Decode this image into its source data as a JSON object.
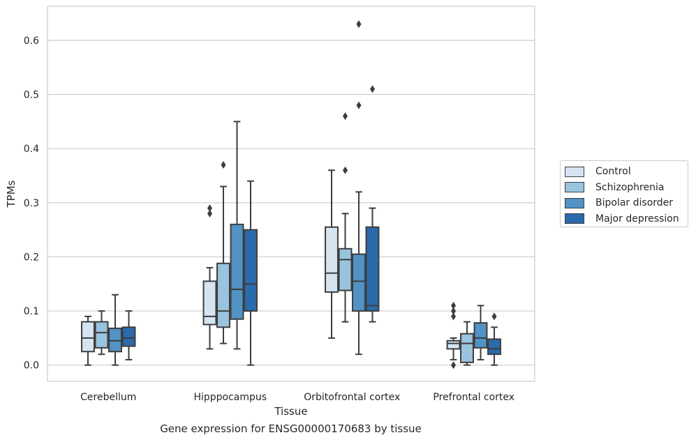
{
  "caption": "Gene expression for ENSG00000170683 by tissue",
  "chart_data": {
    "type": "box",
    "title": "",
    "xlabel": "Tissue",
    "ylabel": "TPMs",
    "ylim": [
      -0.03,
      0.663
    ],
    "yticks": [
      0.0,
      0.1,
      0.2,
      0.3,
      0.4,
      0.5,
      0.6
    ],
    "ytick_labels": [
      "0.0",
      "0.1",
      "0.2",
      "0.3",
      "0.4",
      "0.5",
      "0.6"
    ],
    "grid": "horizontal",
    "legend_position": "right",
    "categories": [
      "Cerebellum",
      "Hipppocampus",
      "Orbitofrontal cortex",
      "Prefrontal cortex"
    ],
    "series": [
      {
        "name": "Control",
        "color": "#d6e4f2",
        "boxes": [
          {
            "whislo": 0.0,
            "q1": 0.025,
            "med": 0.05,
            "q3": 0.08,
            "whishi": 0.09,
            "fliers": []
          },
          {
            "whislo": 0.03,
            "q1": 0.075,
            "med": 0.09,
            "q3": 0.155,
            "whishi": 0.18,
            "fliers": [
              0.28,
              0.29
            ]
          },
          {
            "whislo": 0.05,
            "q1": 0.135,
            "med": 0.17,
            "q3": 0.255,
            "whishi": 0.36,
            "fliers": []
          },
          {
            "whislo": 0.01,
            "q1": 0.03,
            "med": 0.04,
            "q3": 0.045,
            "whishi": 0.05,
            "fliers": [
              0.0,
              0.09,
              0.1,
              0.11
            ]
          }
        ]
      },
      {
        "name": "Schizophrenia",
        "color": "#9ac3de",
        "boxes": [
          {
            "whislo": 0.02,
            "q1": 0.032,
            "med": 0.06,
            "q3": 0.08,
            "whishi": 0.1,
            "fliers": []
          },
          {
            "whislo": 0.04,
            "q1": 0.07,
            "med": 0.1,
            "q3": 0.188,
            "whishi": 0.33,
            "fliers": [
              0.37
            ]
          },
          {
            "whislo": 0.08,
            "q1": 0.138,
            "med": 0.195,
            "q3": 0.215,
            "whishi": 0.28,
            "fliers": [
              0.36,
              0.46
            ]
          },
          {
            "whislo": 0.0,
            "q1": 0.005,
            "med": 0.04,
            "q3": 0.058,
            "whishi": 0.08,
            "fliers": []
          }
        ]
      },
      {
        "name": "Bipolar disorder",
        "color": "#5292c4",
        "boxes": [
          {
            "whislo": 0.0,
            "q1": 0.025,
            "med": 0.045,
            "q3": 0.068,
            "whishi": 0.13,
            "fliers": []
          },
          {
            "whislo": 0.03,
            "q1": 0.085,
            "med": 0.14,
            "q3": 0.26,
            "whishi": 0.45,
            "fliers": []
          },
          {
            "whislo": 0.02,
            "q1": 0.1,
            "med": 0.155,
            "q3": 0.205,
            "whishi": 0.32,
            "fliers": [
              0.48,
              0.63
            ]
          },
          {
            "whislo": 0.01,
            "q1": 0.032,
            "med": 0.05,
            "q3": 0.078,
            "whishi": 0.11,
            "fliers": []
          }
        ]
      },
      {
        "name": "Major depression",
        "color": "#2b6aab",
        "boxes": [
          {
            "whislo": 0.01,
            "q1": 0.035,
            "med": 0.05,
            "q3": 0.07,
            "whishi": 0.1,
            "fliers": []
          },
          {
            "whislo": 0.0,
            "q1": 0.1,
            "med": 0.15,
            "q3": 0.25,
            "whishi": 0.34,
            "fliers": []
          },
          {
            "whislo": 0.08,
            "q1": 0.1,
            "med": 0.11,
            "q3": 0.255,
            "whishi": 0.29,
            "fliers": [
              0.51
            ]
          },
          {
            "whislo": 0.0,
            "q1": 0.02,
            "med": 0.03,
            "q3": 0.048,
            "whishi": 0.07,
            "fliers": [
              0.09
            ]
          }
        ]
      }
    ]
  },
  "colors": {
    "grid": "#cccccc",
    "frame": "#cccccc",
    "stroke": "#3d3d3d",
    "text": "#262626"
  }
}
